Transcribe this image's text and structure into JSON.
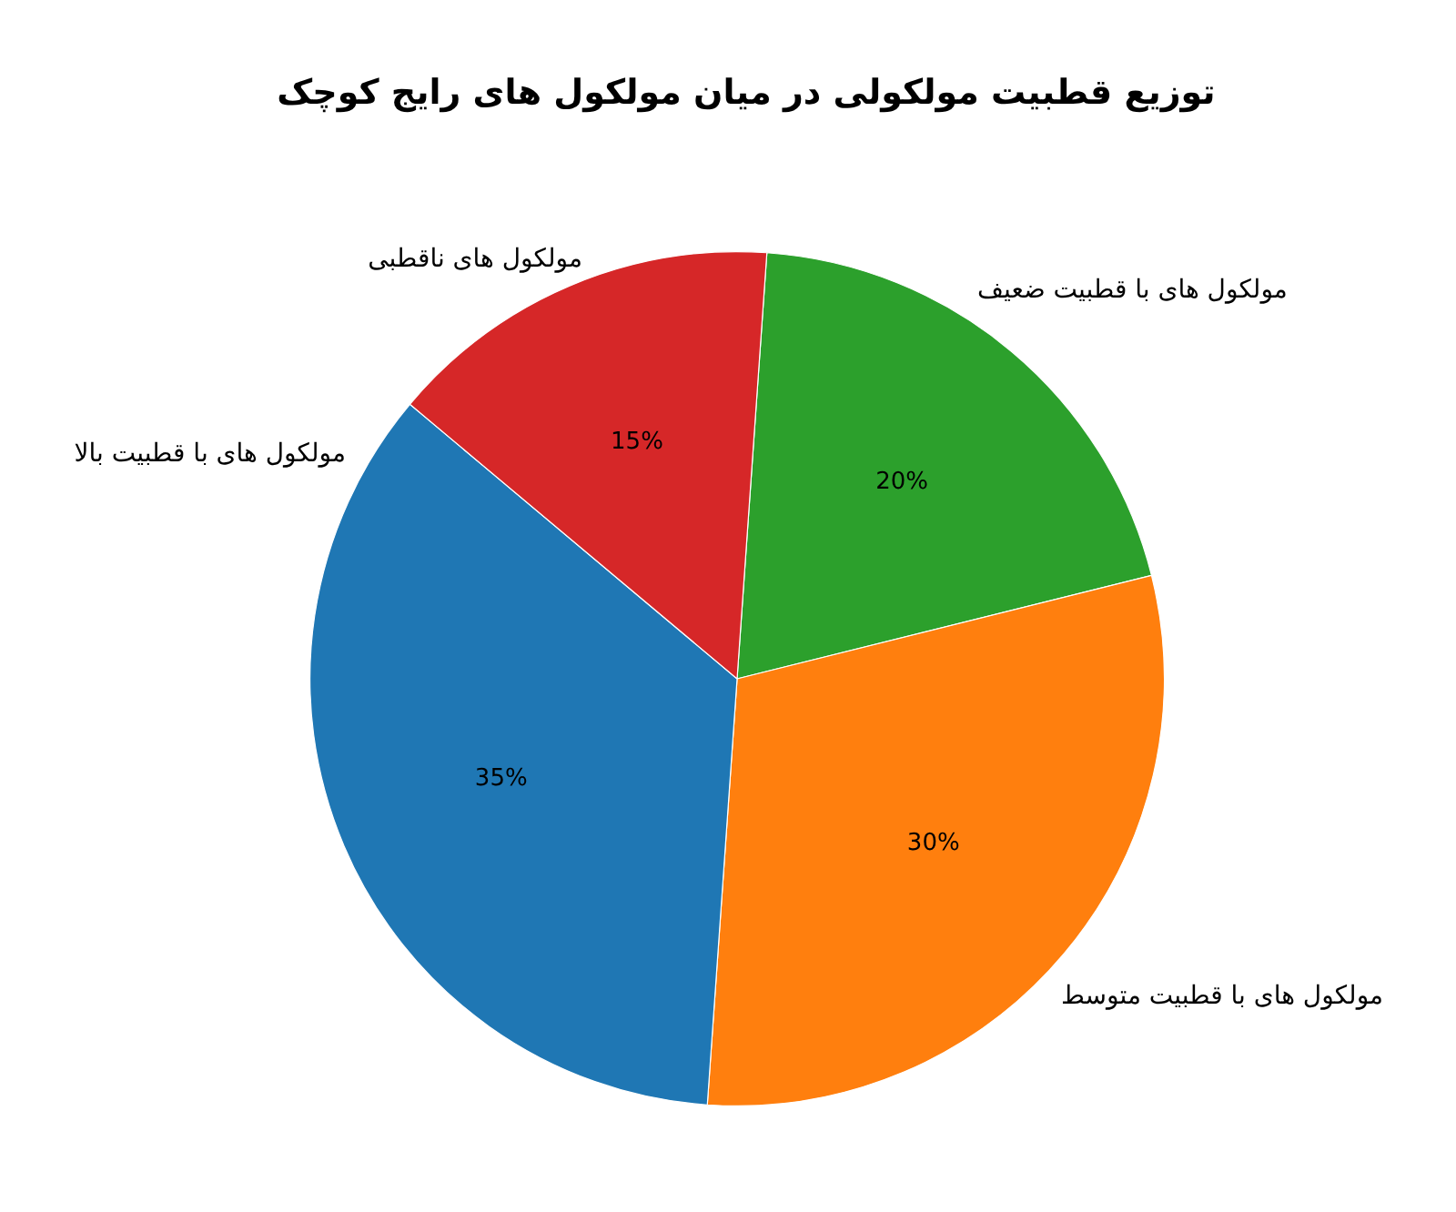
{
  "chart_data": {
    "type": "pie",
    "title": "توزیع قطبیت مولکولی در میان مولکول های رایج کوچک",
    "categories": [
      "مولکول های با قطبیت ضعیف",
      "مولکول های با قطبیت متوسط",
      "مولکول های با قطبیت بالا",
      "مولکول های ناقطبی"
    ],
    "values": [
      20,
      30,
      35,
      15
    ],
    "colors": [
      "#2ca02c",
      "#ff7f0e",
      "#1f77b4",
      "#d62728"
    ],
    "value_labels": [
      "20%",
      "30%",
      "35%",
      "15%"
    ]
  }
}
